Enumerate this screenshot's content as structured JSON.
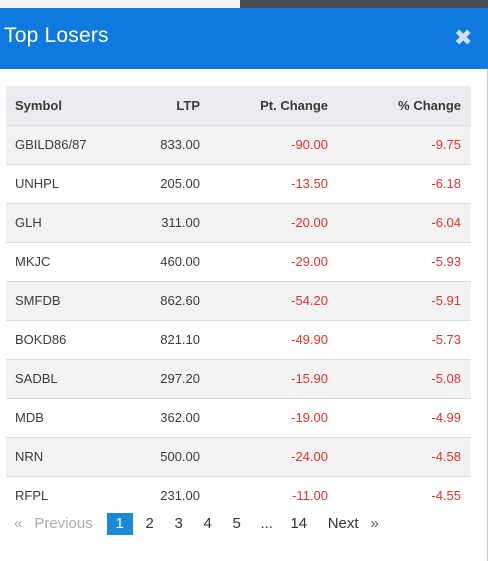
{
  "header": {
    "title": "Top Losers",
    "close_icon": "close-icon"
  },
  "table": {
    "columns": [
      "Symbol",
      "LTP",
      "Pt. Change",
      "% Change"
    ],
    "rows": [
      {
        "symbol": "GBILD86/87",
        "ltp": "833.00",
        "pt_change": "-90.00",
        "pct_change": "-9.75"
      },
      {
        "symbol": "UNHPL",
        "ltp": "205.00",
        "pt_change": "-13.50",
        "pct_change": "-6.18"
      },
      {
        "symbol": "GLH",
        "ltp": "311.00",
        "pt_change": "-20.00",
        "pct_change": "-6.04"
      },
      {
        "symbol": "MKJC",
        "ltp": "460.00",
        "pt_change": "-29.00",
        "pct_change": "-5.93"
      },
      {
        "symbol": "SMFDB",
        "ltp": "862.60",
        "pt_change": "-54.20",
        "pct_change": "-5.91"
      },
      {
        "symbol": "BOKD86",
        "ltp": "821.10",
        "pt_change": "-49.90",
        "pct_change": "-5.73"
      },
      {
        "symbol": "SADBL",
        "ltp": "297.20",
        "pt_change": "-15.90",
        "pct_change": "-5.08"
      },
      {
        "symbol": "MDB",
        "ltp": "362.00",
        "pt_change": "-19.00",
        "pct_change": "-4.99"
      },
      {
        "symbol": "NRN",
        "ltp": "500.00",
        "pt_change": "-24.00",
        "pct_change": "-4.58"
      },
      {
        "symbol": "RFPL",
        "ltp": "231.00",
        "pt_change": "-11.00",
        "pct_change": "-4.55"
      }
    ]
  },
  "pagination": {
    "prev_arrow": "«",
    "prev_label": "Previous",
    "pages": [
      "1",
      "2",
      "3",
      "4",
      "5"
    ],
    "ellipsis": "...",
    "last_page": "14",
    "next_label": "Next",
    "next_arrow": "»",
    "current_page": "1"
  },
  "colors": {
    "header_bg": "#0e79de",
    "negative": "#e0332f",
    "active_page": "#1a8ad8"
  }
}
